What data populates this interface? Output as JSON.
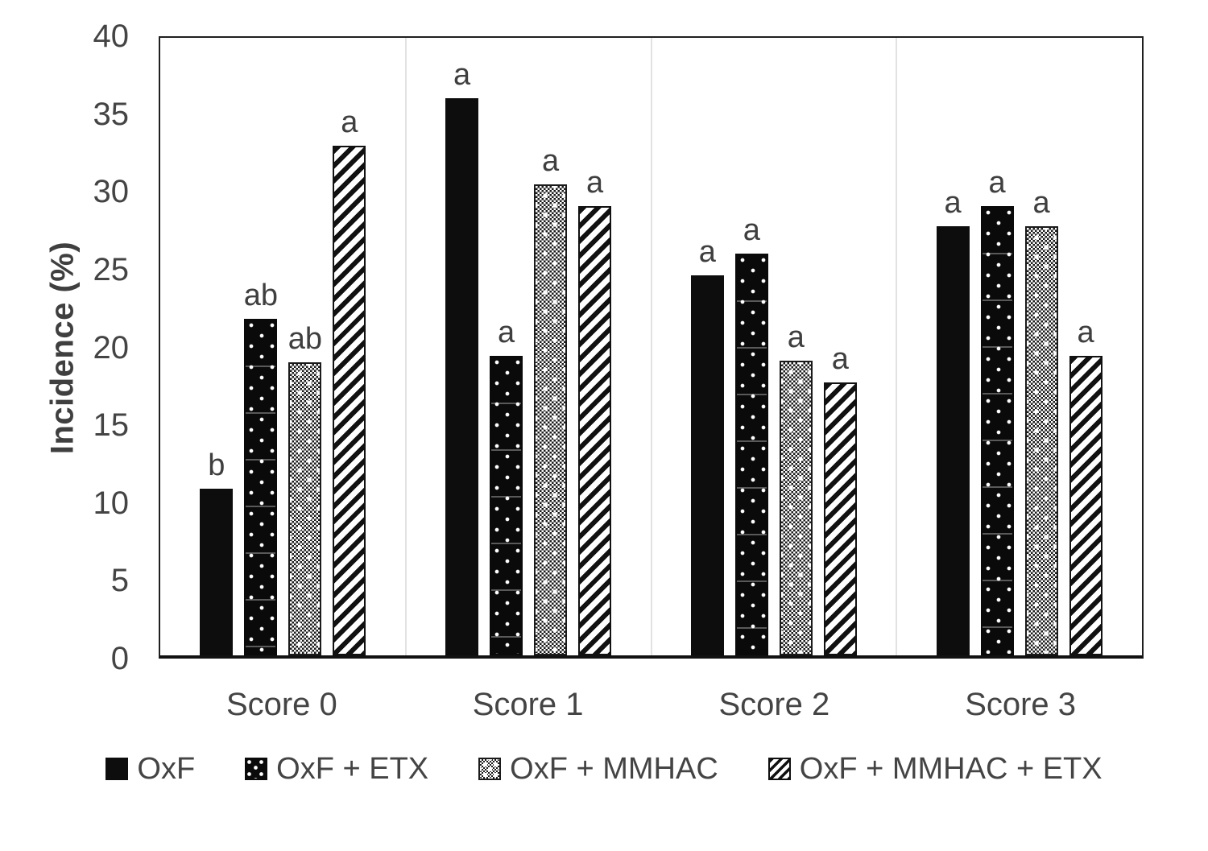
{
  "chart_data": {
    "type": "bar",
    "title": "",
    "xlabel": "",
    "ylabel": "Incidence (%)",
    "ylim": [
      0,
      40
    ],
    "ytick_step": 5,
    "grid": "vertical-category-separators-only",
    "legend_position": "bottom",
    "categories": [
      "Score 0",
      "Score 1",
      "Score 2",
      "Score 3"
    ],
    "series": [
      {
        "name": "OxF",
        "pattern": "solid-black",
        "values": [
          10.8,
          36.1,
          24.6,
          27.8
        ],
        "letters": [
          "b",
          "a",
          "a",
          "a"
        ]
      },
      {
        "name": "OxF + ETX",
        "pattern": "white-dots-on-black",
        "values": [
          21.8,
          19.4,
          26.0,
          29.1
        ],
        "letters": [
          "ab",
          "a",
          "a",
          "a"
        ]
      },
      {
        "name": "OxF + MMHAC",
        "pattern": "fine-checkerboard-gray",
        "values": [
          19.0,
          30.5,
          19.1,
          27.8
        ],
        "letters": [
          "ab",
          "a",
          "a",
          "a"
        ]
      },
      {
        "name": "OxF + MMHAC + ETX",
        "pattern": "diagonal-stripes",
        "values": [
          33.0,
          29.1,
          17.7,
          19.4
        ],
        "letters": [
          "a",
          "a",
          "a",
          "a"
        ]
      }
    ],
    "colors": {
      "bar_black": "#0d0d0d",
      "axis_text": "#444444",
      "letter_text": "#3f3f3f",
      "separator_line": "#e2e2e2",
      "plot_border": "#1f1f1f",
      "background": "#ffffff"
    }
  }
}
